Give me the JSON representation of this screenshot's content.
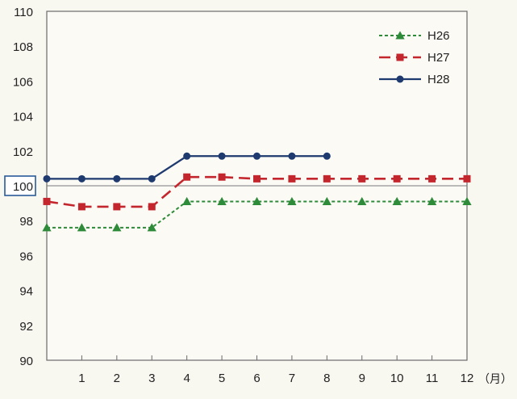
{
  "chart_data": {
    "type": "line",
    "x": [
      0,
      1,
      2,
      3,
      4,
      5,
      6,
      7,
      8,
      9,
      10,
      11,
      12
    ],
    "x_tick_labels": [
      "1",
      "2",
      "3",
      "4",
      "5",
      "6",
      "7",
      "8",
      "9",
      "10",
      "11",
      "12"
    ],
    "x_unit": "（月）",
    "ylim": [
      90,
      110
    ],
    "y_ticks": [
      "90",
      "92",
      "94",
      "96",
      "98",
      "100",
      "102",
      "104",
      "106",
      "108",
      "110"
    ],
    "reference_line": 100,
    "grid": false,
    "legend_position": "top-right",
    "series": [
      {
        "name": "H26",
        "color": "#2e8b3a",
        "marker": "triangle",
        "dash": "short-dash",
        "points": [
          [
            0,
            97.6
          ],
          [
            1,
            97.6
          ],
          [
            2,
            97.6
          ],
          [
            3,
            97.6
          ],
          [
            4,
            99.1
          ],
          [
            5,
            99.1
          ],
          [
            6,
            99.1
          ],
          [
            7,
            99.1
          ],
          [
            8,
            99.1
          ],
          [
            9,
            99.1
          ],
          [
            10,
            99.1
          ],
          [
            11,
            99.1
          ],
          [
            12,
            99.1
          ]
        ]
      },
      {
        "name": "H27",
        "color": "#c4262e",
        "marker": "square",
        "dash": "long-dash",
        "points": [
          [
            0,
            99.1
          ],
          [
            1,
            98.8
          ],
          [
            2,
            98.8
          ],
          [
            3,
            98.8
          ],
          [
            4,
            100.5
          ],
          [
            5,
            100.5
          ],
          [
            6,
            100.4
          ],
          [
            7,
            100.4
          ],
          [
            8,
            100.4
          ],
          [
            9,
            100.4
          ],
          [
            10,
            100.4
          ],
          [
            11,
            100.4
          ],
          [
            12,
            100.4
          ]
        ]
      },
      {
        "name": "H28",
        "color": "#1e3a6e",
        "marker": "circle",
        "dash": "solid",
        "points": [
          [
            0,
            100.4
          ],
          [
            1,
            100.4
          ],
          [
            2,
            100.4
          ],
          [
            3,
            100.4
          ],
          [
            4,
            101.7
          ],
          [
            5,
            101.7
          ],
          [
            6,
            101.7
          ],
          [
            7,
            101.7
          ],
          [
            8,
            101.7
          ]
        ]
      }
    ]
  }
}
